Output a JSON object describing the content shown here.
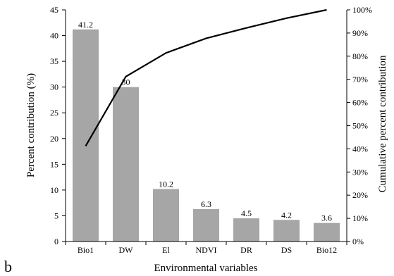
{
  "panel_label": "b",
  "chart_data": {
    "type": "bar",
    "title": "",
    "xlabel": "Environmental variables",
    "ylabel": "Percent contribution  (%)",
    "y2label": "Cumulative percent contribution",
    "categories": [
      "Bio1",
      "DW",
      "El",
      "NDVI",
      "DR",
      "DS",
      "Bio12"
    ],
    "series": [
      {
        "type": "bar",
        "values": [
          41.2,
          30,
          10.2,
          6.3,
          4.5,
          4.2,
          3.6
        ],
        "labels": [
          "41.2",
          "30",
          "10.2",
          "6.3",
          "4.5",
          "4.2",
          "3.6"
        ],
        "color": "#a6a6a6"
      },
      {
        "type": "line",
        "axis": "right",
        "values": [
          41.2,
          71.2,
          81.4,
          87.7,
          92.2,
          96.4,
          100
        ],
        "color": "#000000"
      }
    ],
    "ylim": [
      0,
      45
    ],
    "yticks": [
      "0",
      "5",
      "10",
      "15",
      "20",
      "25",
      "30",
      "35",
      "40",
      "45"
    ],
    "y2lim": [
      0,
      100
    ],
    "y2ticks": [
      "0%",
      "10%",
      "20%",
      "30%",
      "40%",
      "50%",
      "60%",
      "70%",
      "80%",
      "90%",
      "100%"
    ],
    "grid": false,
    "legend": "none"
  }
}
